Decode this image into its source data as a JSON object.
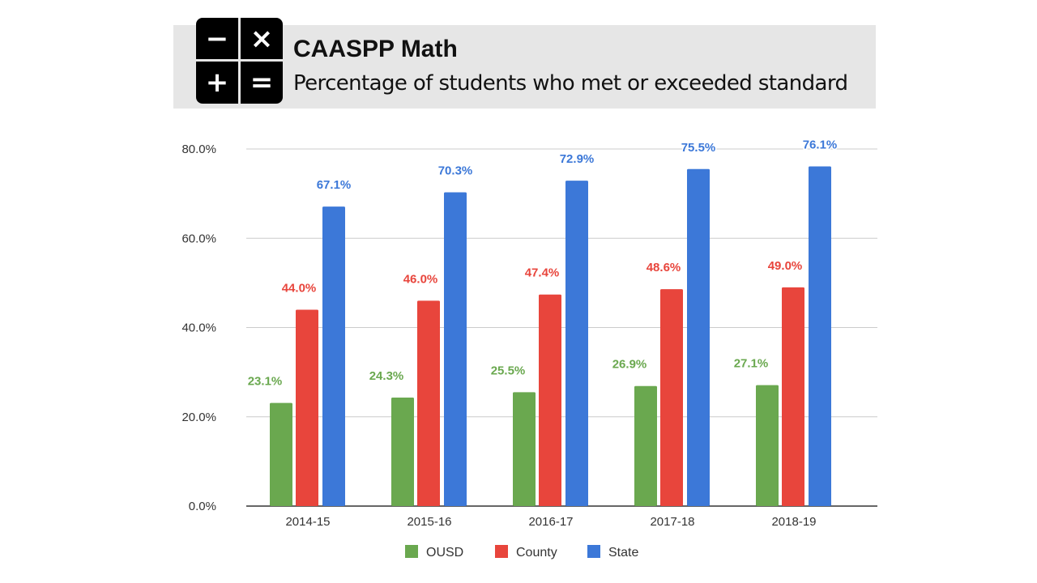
{
  "header": {
    "title": "CAASPP Math",
    "subtitle": "Percentage of students who met or exceeded standard",
    "icon": "calculator-icon",
    "icon_symbols": [
      "−",
      "×",
      "+",
      "="
    ]
  },
  "chart_data": {
    "type": "bar",
    "categories": [
      "2014-15",
      "2015-16",
      "2016-17",
      "2017-18",
      "2018-19"
    ],
    "series": [
      {
        "name": "OUSD",
        "color": "#6aa84f",
        "values": [
          23.1,
          24.3,
          25.5,
          26.9,
          27.1
        ],
        "labels": [
          "23.1%",
          "24.3%",
          "25.5%",
          "26.9%",
          "27.1%"
        ]
      },
      {
        "name": "County",
        "color": "#e8453c",
        "values": [
          44.0,
          46.0,
          47.4,
          48.6,
          49.0
        ],
        "labels": [
          "44.0%",
          "46.0%",
          "47.4%",
          "48.6%",
          "49.0%"
        ]
      },
      {
        "name": "State",
        "color": "#3c78d8",
        "values": [
          67.1,
          70.3,
          72.9,
          75.5,
          76.1
        ],
        "labels": [
          "67.1%",
          "70.3%",
          "72.9%",
          "75.5%",
          "76.1%"
        ]
      }
    ],
    "yticks": [
      "0.0%",
      "20.0%",
      "40.0%",
      "60.0%",
      "80.0%"
    ],
    "ylim": [
      0,
      80
    ],
    "grid": true,
    "legend": "bottom"
  }
}
